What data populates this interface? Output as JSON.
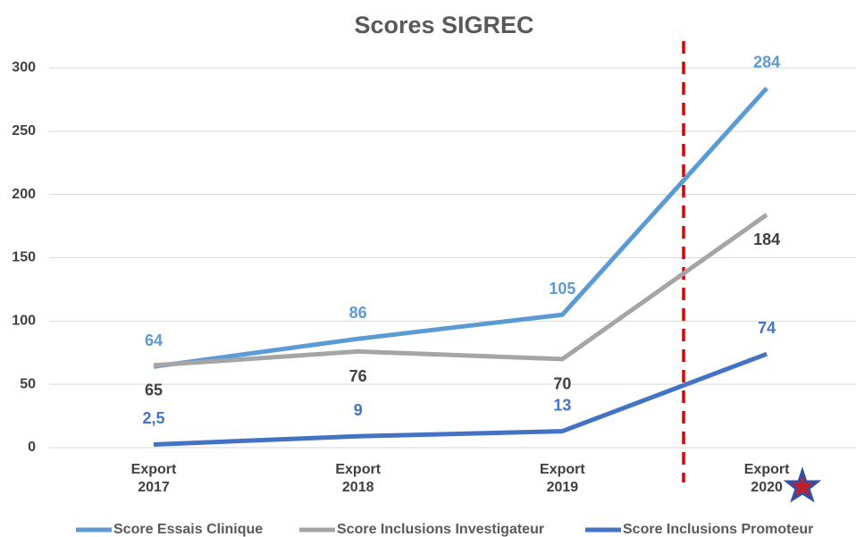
{
  "chart_data": {
    "type": "line",
    "title": "Scores SIGREC",
    "categories": [
      "Export 2017",
      "Export 2018",
      "Export 2019",
      "Export 2020"
    ],
    "series": [
      {
        "name": "Score Essais Clinique",
        "color": "#5b9bd5",
        "values": [
          64,
          86,
          105,
          284
        ]
      },
      {
        "name": "Score Inclusions Investigateur",
        "color": "#a5a5a5",
        "values": [
          65,
          76,
          70,
          184
        ]
      },
      {
        "name": "Score Inclusions Promoteur",
        "color": "#4472c4",
        "values": [
          2.5,
          9,
          13,
          74
        ],
        "value_labels": [
          "2,5",
          "9",
          "13",
          "74"
        ]
      }
    ],
    "ylim": [
      0,
      300
    ],
    "yticks": [
      0,
      50,
      100,
      150,
      200,
      250,
      300
    ],
    "grid": true,
    "legend": "bottom"
  }
}
